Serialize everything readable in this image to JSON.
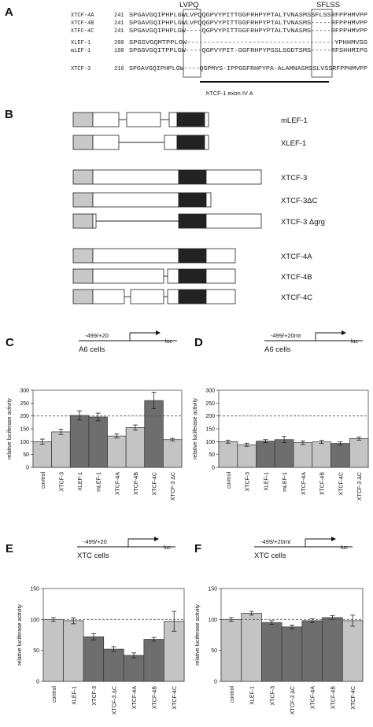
{
  "panel_a": {
    "letter": "A",
    "motif_left": "LVPQ",
    "motif_right": "SFLSS",
    "exon_label": "hTCF-1 exon IV A",
    "rows": [
      {
        "name": "XTCF-4A",
        "num": "241",
        "seq": "SPGAVGQIPHPLGWLVPQQGPVYPITTGGFRHPYPTALTVNASMSSFLSSRFPPHMVPP"
      },
      {
        "name": "XTCF-4B",
        "num": "241",
        "seq": "SPGAVGQIPHPLGWLVPQQGPVYPITTGGFRHPYPTALTVNASMS-----RFPPHMVPP"
      },
      {
        "name": "XTFC-4C",
        "num": "241",
        "seq": "SPGAVGQIPHPLGW----QGPVYPITTGGFRHPYPTALTVNASMS-----RFPPHMVPP"
      },
      {
        "name": "XLEF-1",
        "num": "200",
        "seq": "SPGSVGQMTPPLGW------------------------------------YPHHMVSG"
      },
      {
        "name": "mLEF-1",
        "num": "198",
        "seq": "SPGGVGQITPPLGW----QGPVYPIT-GGFRHPYPSSLSGDTSMS-----RFSHHMIPG"
      },
      {
        "name": "XTCF-3",
        "num": "216",
        "seq": "SPGAVGQIPHPLGW----QGPMYS-IPPGGFRHPYPA-ALAMNASMSSLVSSRFPPHMVPP"
      }
    ]
  },
  "panel_b": {
    "letter": "B",
    "constructs": [
      {
        "name": "mLEF-1"
      },
      {
        "name": "XLEF-1"
      },
      {
        "name": "XTCF-3"
      },
      {
        "name": "XTCF-3ΔC"
      },
      {
        "name": "XTCF-3 Δgrg"
      },
      {
        "name": "XTCF-4A"
      },
      {
        "name": "XTCF-4B"
      },
      {
        "name": "XTCF-4C"
      }
    ]
  },
  "colors": {
    "light_bar": "#c4c4c4",
    "dark_bar": "#6e6e6e",
    "grey_box": "#c8c8c8",
    "black_box": "#222222"
  },
  "chart_data": [
    {
      "type": "bar",
      "panel": "C",
      "promoter": "-499/+20",
      "reporter": "luc",
      "cells": "A6 cells",
      "ylabel": "relative luciferase activity",
      "ylim": [
        0,
        300
      ],
      "yticks": [
        0,
        50,
        100,
        150,
        200,
        250,
        300
      ],
      "reference_line": 200,
      "categories": [
        "control",
        "XTCF-3",
        "XLEF-1",
        "mLEF-1",
        "XTCF-4A",
        "XTCF-4B",
        "XTCF-4C",
        "XTCF-3 ΔC"
      ],
      "values": [
        100,
        138,
        202,
        196,
        122,
        155,
        260,
        108
      ],
      "errors": [
        10,
        10,
        18,
        15,
        8,
        10,
        32,
        5
      ],
      "shade": [
        "light",
        "light",
        "dark",
        "dark",
        "light",
        "light",
        "dark",
        "light"
      ]
    },
    {
      "type": "bar",
      "panel": "D",
      "promoter": "-499/+20mt",
      "reporter": "luc",
      "cells": "A6 cells",
      "ylabel": "relative luciferase activity",
      "ylim": [
        0,
        300
      ],
      "yticks": [
        0,
        50,
        100,
        150,
        200,
        250,
        300
      ],
      "reference_line": 200,
      "categories": [
        "control",
        "XTCF-3",
        "XLEF-1",
        "mLEF-1",
        "XTCF-4A",
        "XTCF-4B",
        "XTCF-4C",
        "XTCF-3 ΔC"
      ],
      "values": [
        100,
        88,
        102,
        108,
        96,
        99,
        93,
        112
      ],
      "errors": [
        6,
        6,
        6,
        12,
        7,
        6,
        6,
        6
      ],
      "shade": [
        "light",
        "light",
        "dark",
        "dark",
        "light",
        "light",
        "dark",
        "light"
      ]
    },
    {
      "type": "bar",
      "panel": "E",
      "promoter": "-499/+20",
      "reporter": "luc",
      "cells": "XTC cells",
      "ylabel": "relative luciferase activity",
      "ylim": [
        0,
        150
      ],
      "yticks": [
        0,
        50,
        100,
        150
      ],
      "reference_line": 100,
      "categories": [
        "control",
        "XLEF-1",
        "XTCF-3",
        "XTCF-3 ΔC",
        "XTCF-4A",
        "XTCF-4B",
        "XTCF-4C"
      ],
      "values": [
        100,
        98,
        72,
        52,
        42,
        68,
        97
      ],
      "errors": [
        3,
        5,
        5,
        4,
        4,
        3,
        16
      ],
      "shade": [
        "light",
        "light",
        "dark",
        "dark",
        "dark",
        "dark",
        "light"
      ]
    },
    {
      "type": "bar",
      "panel": "F",
      "promoter": "-499/+20mt",
      "reporter": "luc",
      "cells": "XTC cells",
      "ylabel": "relative luciferase activity",
      "ylim": [
        0,
        150
      ],
      "yticks": [
        0,
        50,
        100,
        150
      ],
      "reference_line": 100,
      "categories": [
        "control",
        "XLEF-1",
        "XTCF-3",
        "XTCF-3 ΔC",
        "XTCF-4A",
        "XTCF-4B",
        "XTCF-4C"
      ],
      "values": [
        100,
        110,
        95,
        88,
        98,
        103,
        98
      ],
      "errors": [
        3,
        3,
        3,
        3,
        3,
        3,
        9
      ],
      "shade": [
        "light",
        "light",
        "dark",
        "dark",
        "dark",
        "dark",
        "light"
      ]
    }
  ]
}
